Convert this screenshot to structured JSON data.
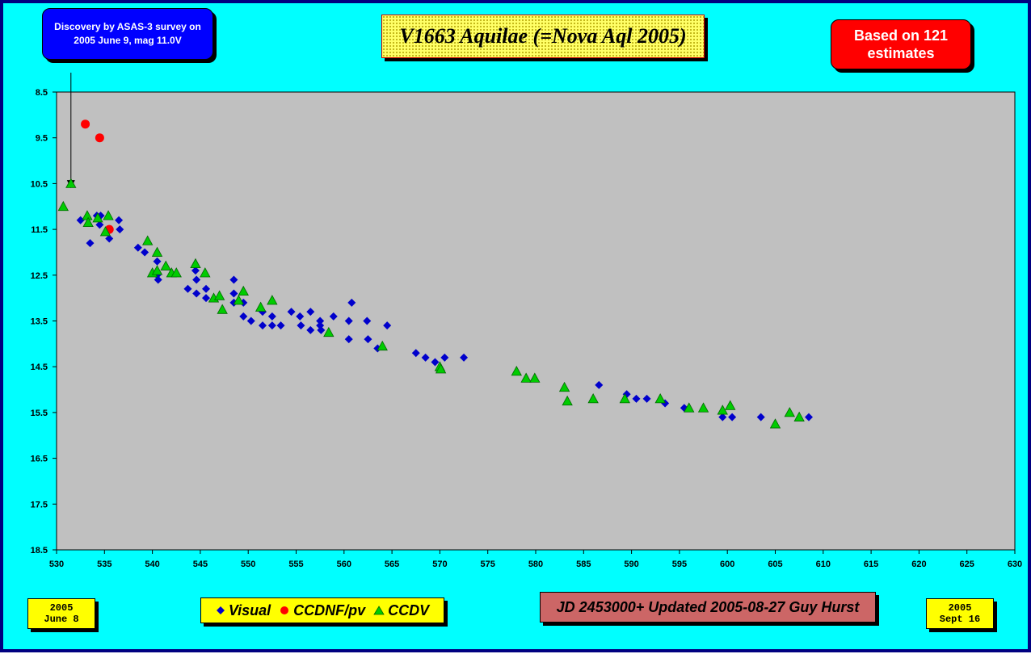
{
  "header": {
    "discovery_note": "Discovery by ASAS-3 survey on 2005 June 9, mag 11.0V",
    "title": "V1663 Aquilae (=Nova Aql 2005)",
    "estimate_count": "Based on 121 estimates"
  },
  "footer": {
    "start_date_year": "2005",
    "start_date_day": "June 8",
    "end_date_year": "2005",
    "end_date_day": "Sept 16",
    "updated_note": "JD 2453000+ Updated 2005-08-27 Guy Hurst"
  },
  "colors": {
    "background": "#00ffff",
    "plot_area": "#c0c0c0",
    "visual": "#0000cc",
    "ccdnf": "#ff0000",
    "ccdv": "#00cc00"
  },
  "chart_data": {
    "type": "scatter",
    "title": "V1663 Aquilae (=Nova Aql 2005)",
    "xlabel": "",
    "ylabel": "",
    "xlim": [
      530,
      630
    ],
    "ylim": [
      18.5,
      8.5
    ],
    "y_inverted": true,
    "grid": false,
    "x_ticks": [
      530,
      535,
      540,
      545,
      550,
      555,
      560,
      565,
      570,
      575,
      580,
      585,
      590,
      595,
      600,
      605,
      610,
      615,
      620,
      625,
      630
    ],
    "y_ticks": [
      8.5,
      9.5,
      10.5,
      11.5,
      12.5,
      13.5,
      14.5,
      15.5,
      16.5,
      17.5,
      18.5
    ],
    "legend": "bottom-center",
    "annotation": {
      "text": "Discovery by ASAS-3 survey on 2005 June 9, mag 11.0V",
      "x": 531.5,
      "y": 10.6
    },
    "series": [
      {
        "name": "Visual",
        "marker": "diamond",
        "points": [
          [
            532.5,
            11.3
          ],
          [
            533.5,
            11.8
          ],
          [
            534.2,
            11.2
          ],
          [
            534.5,
            11.4
          ],
          [
            534.6,
            11.2
          ],
          [
            535.5,
            11.7
          ],
          [
            536.5,
            11.3
          ],
          [
            536.6,
            11.5
          ],
          [
            538.5,
            11.9
          ],
          [
            539.2,
            12.0
          ],
          [
            540.5,
            12.2
          ],
          [
            540.5,
            12.5
          ],
          [
            540.6,
            12.6
          ],
          [
            543.7,
            12.8
          ],
          [
            544.5,
            12.4
          ],
          [
            544.6,
            12.6
          ],
          [
            544.6,
            12.9
          ],
          [
            545.6,
            13.0
          ],
          [
            545.6,
            12.8
          ],
          [
            548.5,
            12.6
          ],
          [
            548.5,
            12.9
          ],
          [
            548.5,
            13.1
          ],
          [
            549.5,
            13.1
          ],
          [
            549.5,
            13.4
          ],
          [
            550.3,
            13.5
          ],
          [
            551.5,
            13.3
          ],
          [
            551.5,
            13.6
          ],
          [
            552.5,
            13.4
          ],
          [
            552.5,
            13.6
          ],
          [
            553.4,
            13.6
          ],
          [
            554.5,
            13.3
          ],
          [
            555.4,
            13.4
          ],
          [
            555.5,
            13.6
          ],
          [
            556.5,
            13.3
          ],
          [
            556.5,
            13.7
          ],
          [
            557.5,
            13.5
          ],
          [
            557.5,
            13.6
          ],
          [
            557.6,
            13.7
          ],
          [
            558.9,
            13.4
          ],
          [
            560.5,
            13.5
          ],
          [
            560.5,
            13.9
          ],
          [
            560.8,
            13.1
          ],
          [
            562.4,
            13.5
          ],
          [
            562.5,
            13.9
          ],
          [
            563.5,
            14.1
          ],
          [
            564.5,
            13.6
          ],
          [
            567.5,
            14.2
          ],
          [
            568.5,
            14.3
          ],
          [
            569.5,
            14.4
          ],
          [
            570.5,
            14.3
          ],
          [
            572.5,
            14.3
          ],
          [
            586.6,
            14.9
          ],
          [
            589.5,
            15.1
          ],
          [
            590.5,
            15.2
          ],
          [
            591.6,
            15.2
          ],
          [
            593.5,
            15.3
          ],
          [
            595.5,
            15.4
          ],
          [
            599.5,
            15.6
          ],
          [
            600.5,
            15.6
          ],
          [
            603.5,
            15.6
          ],
          [
            608.5,
            15.6
          ]
        ]
      },
      {
        "name": "CCDNF/pv",
        "marker": "circle",
        "points": [
          [
            533.0,
            9.2
          ],
          [
            534.5,
            9.5
          ],
          [
            535.5,
            11.5
          ]
        ]
      },
      {
        "name": "CCDV",
        "marker": "triangle",
        "points": [
          [
            531.5,
            10.5
          ],
          [
            530.7,
            11.0
          ],
          [
            533.2,
            11.2
          ],
          [
            533.3,
            11.35
          ],
          [
            534.3,
            11.25
          ],
          [
            535.1,
            11.55
          ],
          [
            535.4,
            11.2
          ],
          [
            539.5,
            11.75
          ],
          [
            540.5,
            12.0
          ],
          [
            540.0,
            12.45
          ],
          [
            540.5,
            12.4
          ],
          [
            541.4,
            12.3
          ],
          [
            542.0,
            12.45
          ],
          [
            542.5,
            12.45
          ],
          [
            544.5,
            12.25
          ],
          [
            545.5,
            12.45
          ],
          [
            546.4,
            13.0
          ],
          [
            547.0,
            12.95
          ],
          [
            547.3,
            13.25
          ],
          [
            549.0,
            13.05
          ],
          [
            549.5,
            12.85
          ],
          [
            551.3,
            13.2
          ],
          [
            552.5,
            13.05
          ],
          [
            558.4,
            13.75
          ],
          [
            564.0,
            14.05
          ],
          [
            570.0,
            14.5
          ],
          [
            570.1,
            14.55
          ],
          [
            578.0,
            14.6
          ],
          [
            579.0,
            14.75
          ],
          [
            579.9,
            14.75
          ],
          [
            583.0,
            14.95
          ],
          [
            583.3,
            15.25
          ],
          [
            586.0,
            15.2
          ],
          [
            589.3,
            15.2
          ],
          [
            593.0,
            15.2
          ],
          [
            596.0,
            15.4
          ],
          [
            597.5,
            15.4
          ],
          [
            599.5,
            15.45
          ],
          [
            600.3,
            15.35
          ],
          [
            605.0,
            15.75
          ],
          [
            606.5,
            15.5
          ],
          [
            607.5,
            15.6
          ]
        ]
      }
    ]
  }
}
